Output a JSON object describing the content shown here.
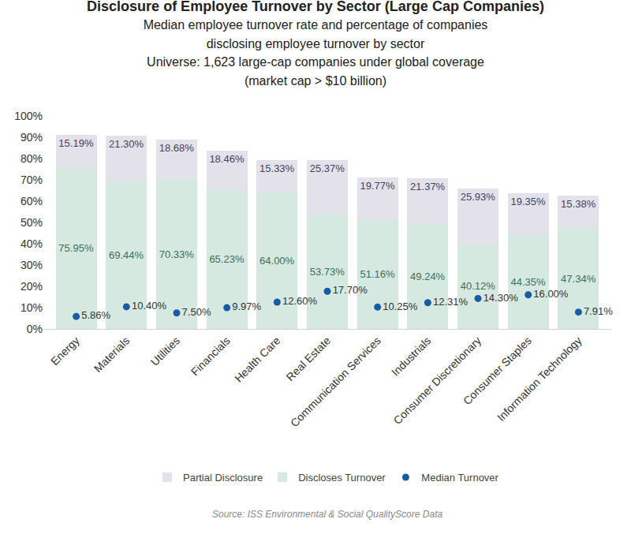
{
  "chart_data": {
    "type": "bar",
    "title": "Disclosure of Employee Turnover by Sector (Large Cap Companies)",
    "subtitle": [
      "Median employee turnover rate and percentage of companies",
      "disclosing employee turnover by sector",
      "Universe: 1,623 large-cap companies under global coverage",
      "(market cap > $10 billion)"
    ],
    "source": "Source: ISS Environmental & Social QualityScore Data",
    "categories": [
      "Energy",
      "Materials",
      "Utilities",
      "Financials",
      "Health Care",
      "Real Estate",
      "Communication Services",
      "Industrials",
      "Consumer Discretionary",
      "Consumer Staples",
      "Information Technology"
    ],
    "series": [
      {
        "name": "Discloses Turnover",
        "type": "bar",
        "color": "#d5e9e1",
        "values": [
          75.95,
          69.44,
          70.33,
          65.23,
          64.0,
          53.73,
          51.16,
          49.24,
          40.12,
          44.35,
          47.34
        ],
        "value_labels": [
          "75.95%",
          "69.44%",
          "70.33%",
          "65.23%",
          "64.00%",
          "53.73%",
          "51.16%",
          "49.24%",
          "40.12%",
          "44.35%",
          "47.34%"
        ]
      },
      {
        "name": "Partial Disclosure",
        "type": "bar",
        "color": "#e3e1ea",
        "values": [
          15.19,
          21.3,
          18.68,
          18.46,
          15.33,
          25.37,
          19.77,
          21.37,
          25.93,
          19.35,
          15.38
        ],
        "value_labels": [
          "15.19%",
          "21.30%",
          "18.68%",
          "18.46%",
          "15.33%",
          "25.37%",
          "19.77%",
          "21.37%",
          "25.93%",
          "19.35%",
          "15.38%"
        ]
      },
      {
        "name": "Median Turnover",
        "type": "scatter",
        "marker": "circle",
        "color": "#1a5ca3",
        "values": [
          5.86,
          10.4,
          7.5,
          9.97,
          12.6,
          17.7,
          10.25,
          12.31,
          14.3,
          16.0,
          7.91
        ],
        "value_labels": [
          "5.86%",
          "10.40%",
          "7.50%",
          "9.97%",
          "12.60%",
          "17.70%",
          "10.25%",
          "12.31%",
          "14.30%",
          "16.00%",
          "7.91%"
        ]
      }
    ],
    "stacked": true,
    "data_labels": true,
    "ylim": [
      0,
      100
    ],
    "yticks": [
      {
        "value": 0,
        "label": "0%"
      },
      {
        "value": 10,
        "label": "10%"
      },
      {
        "value": 20,
        "label": "20%"
      },
      {
        "value": 30,
        "label": "30%"
      },
      {
        "value": 40,
        "label": "40%"
      },
      {
        "value": 50,
        "label": "50%"
      },
      {
        "value": 60,
        "label": "60%"
      },
      {
        "value": 70,
        "label": "70%"
      },
      {
        "value": 80,
        "label": "80%"
      },
      {
        "value": 90,
        "label": "90%"
      },
      {
        "value": 100,
        "label": "100%"
      }
    ],
    "grid": false,
    "legend": "bottom"
  }
}
